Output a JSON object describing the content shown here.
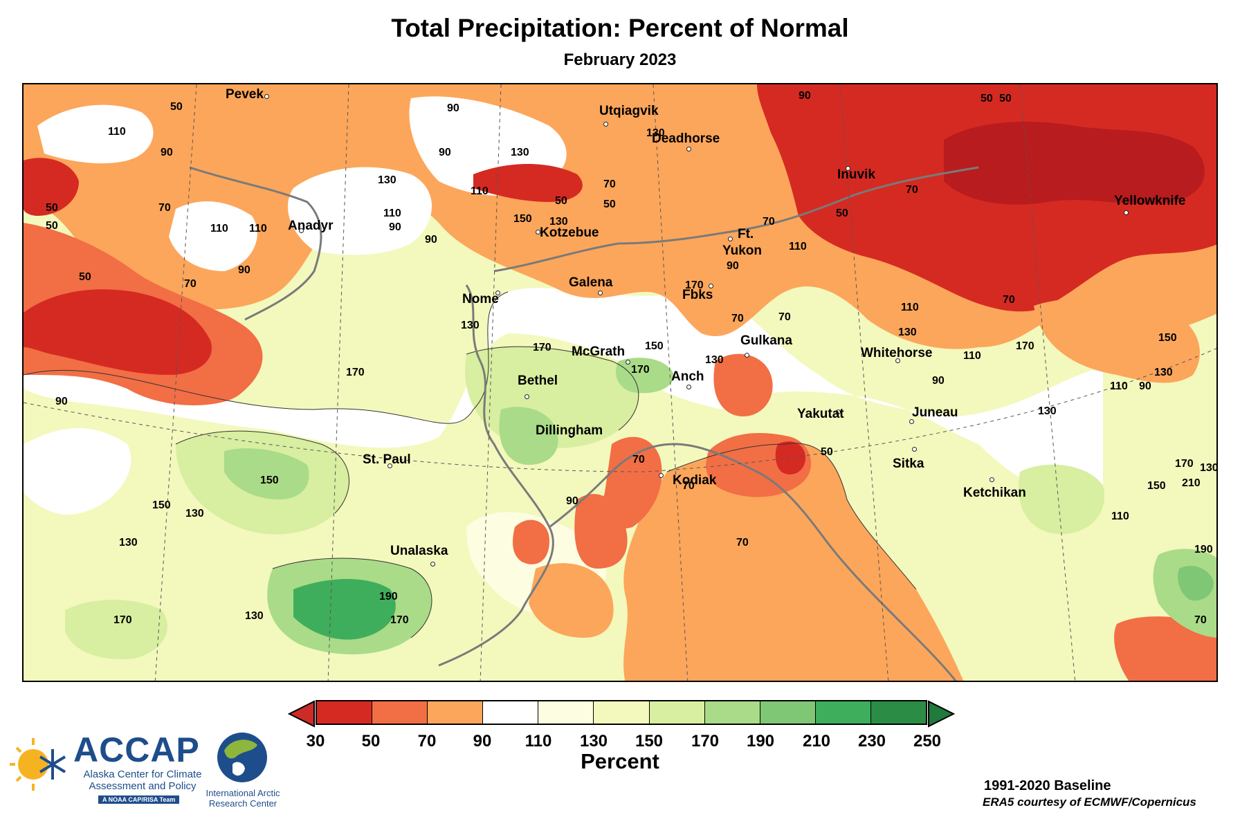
{
  "title": "Total Precipitation: Percent of Normal",
  "subtitle": "February 2023",
  "legend": {
    "title": "Percent",
    "ticks": [
      "30",
      "50",
      "70",
      "90",
      "110",
      "130",
      "150",
      "170",
      "190",
      "210",
      "230",
      "250"
    ],
    "colors": [
      "#d52a22",
      "#f26e45",
      "#fca65b",
      "#ffffff",
      "#fdfde2",
      "#f3f8bd",
      "#d8eea0",
      "#aadb88",
      "#7fc775",
      "#3fae5c",
      "#2a8c45"
    ],
    "under_color": "#cc2b27",
    "over_color": "#1f7a3b"
  },
  "cities": [
    {
      "name": "Pevek"
    },
    {
      "name": "Utqiagvik"
    },
    {
      "name": "Deadhorse"
    },
    {
      "name": "Inuvik"
    },
    {
      "name": "Yellowknife"
    },
    {
      "name": "Anadyr"
    },
    {
      "name": "Kotzebue"
    },
    {
      "name": "Ft."
    },
    {
      "name": "Yukon"
    },
    {
      "name": "Nome"
    },
    {
      "name": "Galena"
    },
    {
      "name": "Fbks"
    },
    {
      "name": "Gulkana"
    },
    {
      "name": "McGrath"
    },
    {
      "name": "Whitehorse"
    },
    {
      "name": "Bethel"
    },
    {
      "name": "Anch"
    },
    {
      "name": "Juneau"
    },
    {
      "name": "Yakutat"
    },
    {
      "name": "Dillingham"
    },
    {
      "name": "Sitka"
    },
    {
      "name": "St. Paul"
    },
    {
      "name": "Kodiak"
    },
    {
      "name": "Ketchikan"
    },
    {
      "name": "Unalaska"
    }
  ],
  "contour_labels": [
    "50",
    "50",
    "50",
    "50",
    "50",
    "50",
    "50",
    "50",
    "50",
    "50",
    "70",
    "70",
    "70",
    "70",
    "70",
    "70",
    "70",
    "70",
    "70",
    "70",
    "70",
    "70",
    "90",
    "90",
    "90",
    "90",
    "90",
    "90",
    "90",
    "90",
    "90",
    "90",
    "90",
    "90",
    "110",
    "110",
    "110",
    "110",
    "110",
    "110",
    "110",
    "110",
    "110",
    "110",
    "130",
    "130",
    "130",
    "130",
    "130",
    "130",
    "130",
    "130",
    "130",
    "130",
    "130",
    "130",
    "130",
    "150",
    "150",
    "150",
    "150",
    "150",
    "150",
    "170",
    "170",
    "170",
    "170",
    "170",
    "170",
    "170",
    "170",
    "190",
    "190",
    "210"
  ],
  "footer": {
    "baseline": "1991-2020 Baseline",
    "credit": "ERA5 courtesy of ECMWF/Copernicus"
  },
  "logos": {
    "accap_name": "ACCAP",
    "accap_line1": "Alaska Center for Climate",
    "accap_line2": "Assessment and Policy",
    "accap_tag": "A NOAA CAP/RISA Team",
    "iarc_line1": "International Arctic",
    "iarc_line2": "Research Center"
  }
}
